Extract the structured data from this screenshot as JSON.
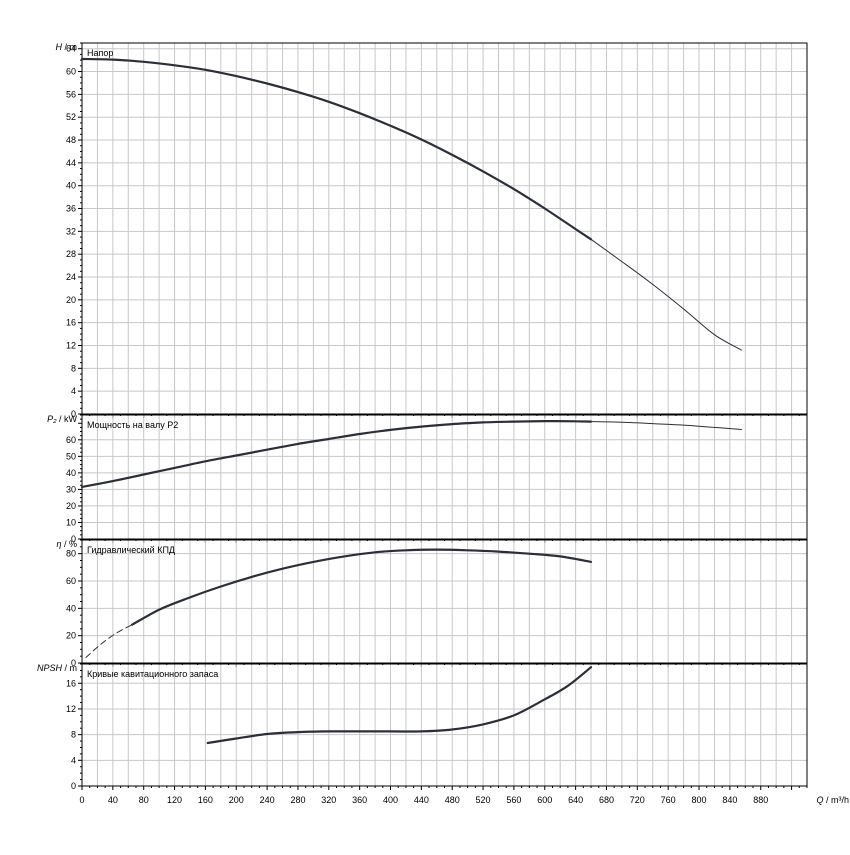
{
  "colors": {
    "grid": "#c8c8c8",
    "frame": "#000000",
    "curve": "#2b2f3a",
    "background": "#ffffff"
  },
  "chart_data": [
    {
      "type": "line",
      "title": "Напор",
      "ylabel_var": "H",
      "ylabel_unit": "m",
      "xlim": [
        0,
        940
      ],
      "ylim": [
        0,
        65
      ],
      "xticks": [
        0,
        40,
        80,
        120,
        160,
        200,
        240,
        280,
        320,
        360,
        400,
        440,
        480,
        520,
        560,
        600,
        640,
        680,
        720,
        760,
        800,
        840,
        880
      ],
      "yticks": [
        0,
        4,
        8,
        12,
        16,
        20,
        24,
        28,
        32,
        36,
        40,
        44,
        48,
        52,
        56,
        60,
        64
      ],
      "grid": true,
      "series": [
        {
          "x": [
            0,
            40,
            80,
            120,
            160,
            200,
            240,
            280,
            320,
            360,
            400,
            440,
            480,
            520,
            560,
            600,
            640,
            660
          ],
          "y": [
            62.2,
            62.1,
            61.7,
            61.1,
            60.3,
            59.2,
            57.9,
            56.4,
            54.7,
            52.7,
            50.5,
            48.1,
            45.4,
            42.5,
            39.4,
            36.0,
            32.4,
            30.6
          ],
          "style": "bold"
        },
        {
          "x": [
            660,
            700,
            740,
            780,
            820,
            855
          ],
          "y": [
            30.6,
            26.7,
            22.7,
            18.4,
            13.9,
            11.2
          ],
          "style": "thin"
        }
      ]
    },
    {
      "type": "line",
      "title": "Мощность на валу P2",
      "ylabel_var": "P₂",
      "ylabel_unit": "kW",
      "xlim": [
        0,
        940
      ],
      "ylim": [
        0,
        75
      ],
      "xticks": [
        0,
        40,
        80,
        120,
        160,
        200,
        240,
        280,
        320,
        360,
        400,
        440,
        480,
        520,
        560,
        600,
        640,
        680,
        720,
        760,
        800,
        840,
        880
      ],
      "yticks": [
        0,
        10,
        20,
        30,
        40,
        50,
        60
      ],
      "grid": true,
      "series": [
        {
          "x": [
            0,
            40,
            80,
            120,
            160,
            200,
            240,
            280,
            320,
            360,
            400,
            440,
            480,
            520,
            560,
            600,
            640,
            660
          ],
          "y": [
            31.5,
            35.0,
            39.0,
            43.0,
            47.0,
            50.5,
            54.0,
            57.5,
            60.5,
            63.5,
            66.0,
            68.0,
            69.5,
            70.5,
            71.0,
            71.3,
            71.2,
            71.0
          ],
          "style": "bold"
        },
        {
          "x": [
            660,
            700,
            740,
            780,
            820,
            855
          ],
          "y": [
            71.0,
            70.6,
            69.8,
            68.9,
            67.5,
            66.2
          ],
          "style": "thin"
        }
      ]
    },
    {
      "type": "line",
      "title": "Гидравлический КПД",
      "ylabel_var": "η",
      "ylabel_unit": "%",
      "xlim": [
        0,
        940
      ],
      "ylim": [
        0,
        90
      ],
      "xticks": [
        0,
        40,
        80,
        120,
        160,
        200,
        240,
        280,
        320,
        360,
        400,
        440,
        480,
        520,
        560,
        600,
        640,
        680,
        720,
        760,
        800,
        840,
        880
      ],
      "yticks": [
        0,
        20,
        40,
        60,
        80
      ],
      "grid": true,
      "series": [
        {
          "x": [
            5,
            25,
            45,
            65
          ],
          "y": [
            4,
            14,
            22,
            28
          ],
          "style": "dashed"
        },
        {
          "x": [
            65,
            100,
            140,
            180,
            220,
            260,
            300,
            340,
            380,
            420,
            460,
            500,
            540,
            580,
            620,
            660
          ],
          "y": [
            28,
            39,
            48,
            56,
            63,
            69,
            74,
            78,
            81,
            82.5,
            83,
            82.5,
            81.5,
            80,
            78,
            74
          ],
          "style": "bold"
        }
      ]
    },
    {
      "type": "line",
      "title": "Кривые кавитационного запаса",
      "ylabel_var": "NPSH",
      "ylabel_unit": "m",
      "xlim": [
        0,
        940
      ],
      "ylim": [
        0,
        19
      ],
      "xticks": [
        0,
        40,
        80,
        120,
        160,
        200,
        240,
        280,
        320,
        360,
        400,
        440,
        480,
        520,
        560,
        600,
        640,
        680,
        720,
        760,
        800,
        840,
        880
      ],
      "xtick_labels": [
        "0",
        "40",
        "80",
        "120",
        "160",
        "200",
        "240",
        "280",
        "320",
        "360",
        "400",
        "440",
        "480",
        "520",
        "560",
        "600",
        "640",
        "680",
        "720",
        "760",
        "800",
        "840",
        "880"
      ],
      "yticks": [
        0,
        4,
        8,
        12,
        16
      ],
      "grid": true,
      "xlabel_var": "Q",
      "xlabel_unit": "m³/h",
      "series": [
        {
          "x": [
            163,
            200,
            240,
            280,
            320,
            360,
            400,
            440,
            480,
            520,
            560,
            600,
            630,
            660
          ],
          "y": [
            6.7,
            7.4,
            8.1,
            8.4,
            8.5,
            8.5,
            8.5,
            8.5,
            8.8,
            9.6,
            11.0,
            13.5,
            15.6,
            18.5
          ],
          "style": "bold"
        }
      ]
    }
  ]
}
